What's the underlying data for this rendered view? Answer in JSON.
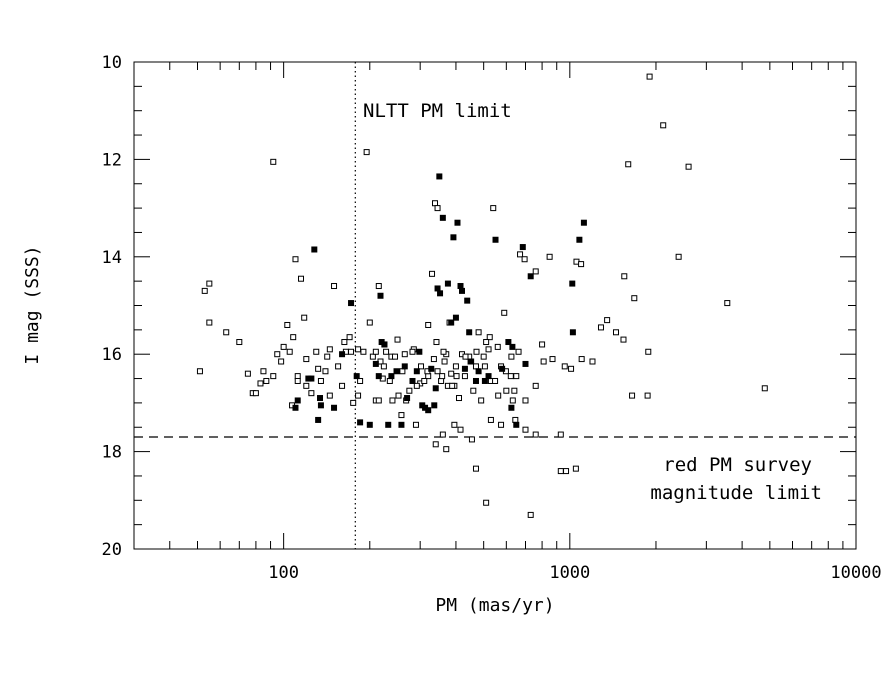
{
  "chart_data": {
    "type": "scatter",
    "title": "",
    "xlabel": "PM (mas/yr)",
    "ylabel": "I mag (SSS)",
    "x_scale": "log",
    "xlim": [
      30,
      10000
    ],
    "ylim": [
      20,
      10
    ],
    "y_inverted": true,
    "x_ticks": [
      100,
      1000,
      10000
    ],
    "x_tick_labels": [
      "100",
      "1000",
      "10000"
    ],
    "y_ticks": [
      10,
      12,
      14,
      16,
      18,
      20
    ],
    "y_tick_labels": [
      "10",
      "12",
      "14",
      "16",
      "18",
      "20"
    ],
    "grid": false,
    "reference_lines": [
      {
        "orientation": "vertical",
        "value": 178,
        "style": "dotted"
      },
      {
        "orientation": "horizontal",
        "value": 17.7,
        "style": "dashed"
      }
    ],
    "annotations": [
      {
        "text": "NLTT PM limit"
      },
      {
        "text": "red PM survey"
      },
      {
        "text": "magnitude limit"
      }
    ],
    "series": [
      {
        "marker": "open-square",
        "x": [
          51,
          53,
          55,
          55,
          63,
          70,
          75,
          78,
          80,
          83,
          85,
          87,
          92,
          95,
          105,
          107,
          110,
          112,
          120,
          125,
          135,
          140,
          150,
          160,
          165,
          170,
          175,
          195,
          200,
          215,
          222,
          225,
          238,
          250,
          265,
          285,
          302,
          320,
          330,
          338,
          345,
          370,
          380,
          400,
          420,
          480,
          525,
          540,
          590,
          670,
          695,
          760,
          800,
          850,
          930,
          1055,
          1095,
          1285,
          1550,
          1600,
          1680,
          1900,
          2120,
          2600,
          2400,
          3550,
          4800,
          92,
          190,
          115,
          120,
          130,
          155,
          118,
          145,
          108,
          98,
          103,
          112,
          145,
          185,
          205,
          210,
          235,
          240,
          260,
          275,
          300,
          320,
          335,
          345,
          355,
          365,
          375,
          385,
          395,
          410,
          430,
          445,
          460,
          470,
          490,
          510,
          520,
          530,
          560,
          575,
          600,
          625,
          650,
          700,
          760,
          810,
          870,
          960,
          1010,
          1100,
          1200,
          1350,
          1450,
          1650,
          1870,
          1880,
          1540,
          100,
          132,
          142,
          163,
          172,
          182,
          210,
          218,
          224,
          228,
          245,
          252,
          268,
          282,
          292,
          310,
          318,
          342,
          358,
          362,
          388,
          402,
          432,
          450,
          472,
          500,
          505,
          548,
          562,
          598,
          622,
          632,
          640,
          662,
          182,
          215,
          258,
          290,
          360,
          395,
          415,
          455,
          530,
          575,
          645,
          700,
          760,
          340,
          370,
          470,
          510,
          730,
          930,
          970,
          1050
        ],
        "y": [
          16.35,
          14.7,
          14.55,
          15.35,
          15.55,
          15.75,
          16.4,
          16.8,
          16.8,
          16.6,
          16.35,
          16.55,
          12.05,
          16.0,
          15.95,
          17.05,
          14.05,
          16.45,
          16.1,
          16.8,
          16.55,
          16.35,
          14.6,
          16.65,
          15.95,
          15.65,
          17.0,
          11.85,
          15.35,
          14.6,
          16.5,
          15.8,
          16.05,
          15.7,
          16.0,
          15.9,
          16.25,
          15.4,
          14.35,
          12.9,
          13.0,
          16.0,
          15.35,
          16.25,
          16.0,
          15.55,
          15.65,
          13.0,
          15.15,
          13.95,
          14.05,
          14.3,
          15.8,
          14.0,
          17.65,
          14.1,
          14.15,
          15.45,
          14.4,
          12.1,
          14.85,
          10.3,
          11.3,
          12.15,
          14.0,
          14.95,
          16.7,
          16.45,
          15.95,
          14.45,
          16.65,
          15.95,
          16.25,
          15.25,
          16.85,
          15.65,
          16.15,
          15.4,
          16.55,
          15.9,
          16.55,
          16.05,
          16.95,
          16.55,
          16.95,
          16.35,
          16.75,
          16.6,
          16.45,
          16.1,
          16.35,
          16.55,
          16.15,
          16.65,
          16.4,
          16.65,
          16.9,
          16.45,
          16.05,
          16.75,
          16.25,
          16.95,
          15.75,
          15.9,
          16.55,
          15.85,
          16.25,
          16.75,
          16.05,
          16.45,
          16.95,
          16.65,
          16.15,
          16.1,
          16.25,
          16.3,
          16.1,
          16.15,
          15.3,
          15.55,
          16.85,
          16.85,
          15.95,
          15.7,
          15.85,
          16.3,
          16.05,
          15.75,
          15.95,
          15.9,
          15.95,
          16.15,
          16.25,
          15.95,
          16.05,
          16.85,
          16.95,
          15.95,
          16.65,
          16.55,
          16.35,
          15.75,
          16.45,
          15.95,
          16.65,
          16.45,
          16.05,
          16.15,
          15.95,
          16.05,
          16.25,
          16.55,
          16.85,
          16.35,
          16.45,
          16.95,
          16.75,
          15.95,
          16.85,
          16.95,
          17.25,
          17.45,
          17.65,
          17.45,
          17.55,
          17.75,
          17.35,
          17.45,
          17.35,
          17.55,
          17.65,
          17.85,
          17.95,
          18.35,
          19.05,
          19.3,
          18.4,
          18.4,
          18.35
        ]
      },
      {
        "marker": "filled-square",
        "x": [
          110,
          112,
          122,
          125,
          128,
          132,
          134,
          135,
          150,
          160,
          172,
          180,
          185,
          200,
          210,
          215,
          218,
          220,
          225,
          232,
          238,
          248,
          258,
          265,
          270,
          282,
          292,
          298,
          305,
          312,
          320,
          328,
          336,
          340,
          345,
          350,
          352,
          360,
          375,
          385,
          392,
          400,
          405,
          415,
          420,
          430,
          438,
          445,
          452,
          470,
          480,
          505,
          520,
          550,
          580,
          610,
          625,
          630,
          650,
          685,
          700,
          730,
          1020,
          1025,
          1080,
          1120
        ],
        "y": [
          17.1,
          16.95,
          16.5,
          16.5,
          13.85,
          17.35,
          16.9,
          17.05,
          17.1,
          16.0,
          14.95,
          16.45,
          17.4,
          17.45,
          16.2,
          16.45,
          14.8,
          15.75,
          15.8,
          17.45,
          16.45,
          16.35,
          17.45,
          16.25,
          16.9,
          16.55,
          16.35,
          15.95,
          17.05,
          17.1,
          17.15,
          16.3,
          17.05,
          16.7,
          14.65,
          12.35,
          14.75,
          13.2,
          14.55,
          15.35,
          13.6,
          15.25,
          13.3,
          14.6,
          14.7,
          16.3,
          14.9,
          15.55,
          16.15,
          16.55,
          16.35,
          16.55,
          16.45,
          13.65,
          16.3,
          15.75,
          17.1,
          15.85,
          17.45,
          13.8,
          16.2,
          14.4,
          14.55,
          15.55,
          13.65,
          13.3
        ]
      }
    ]
  }
}
